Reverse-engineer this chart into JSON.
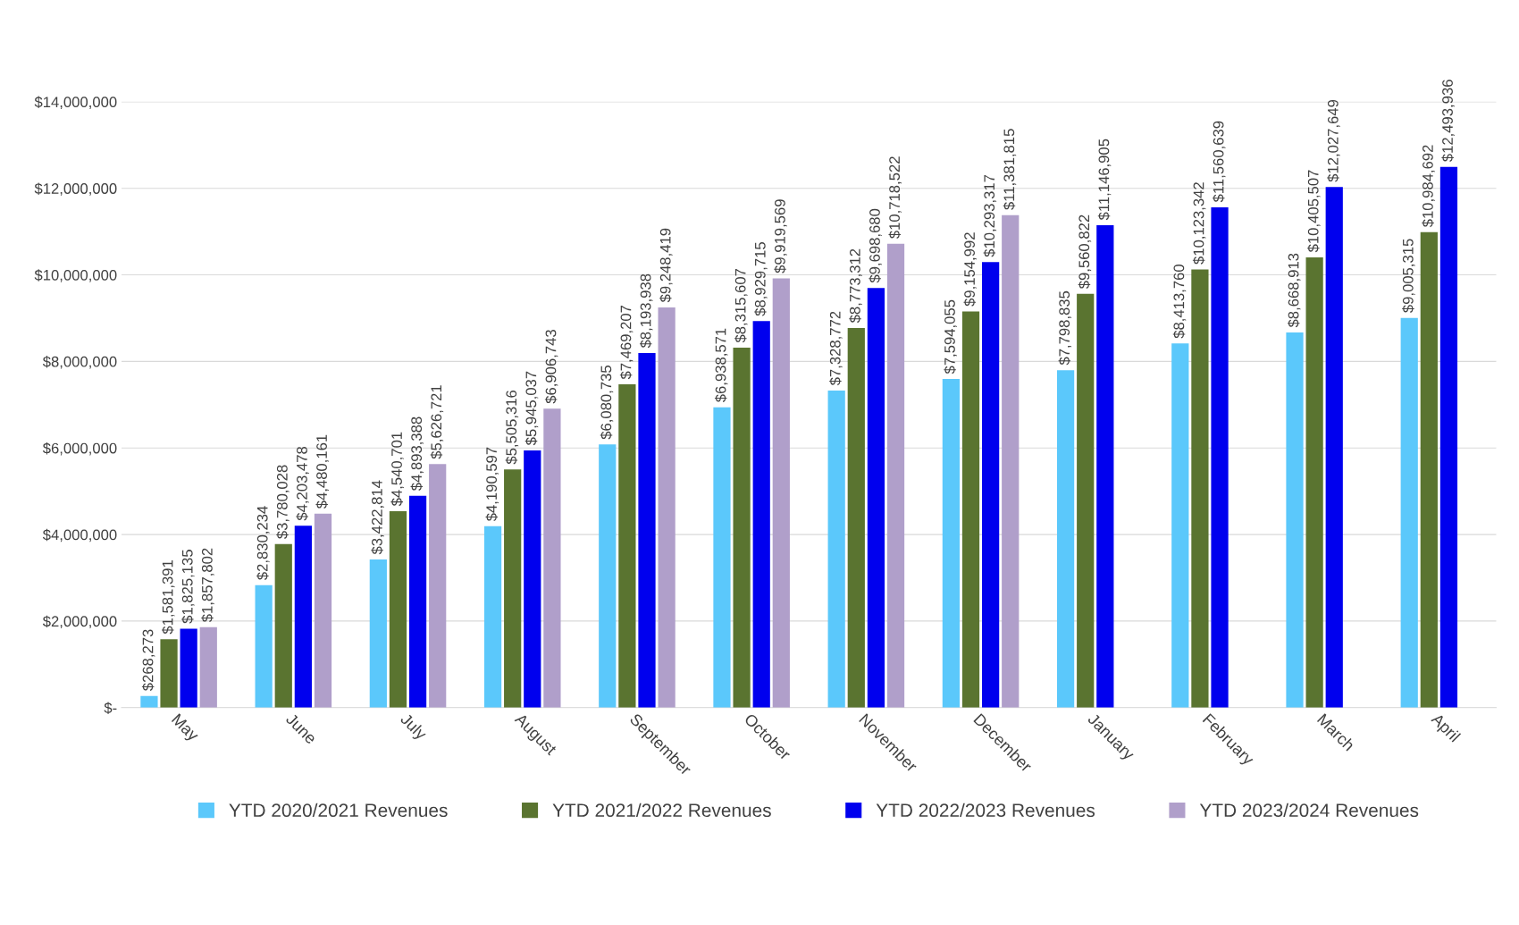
{
  "chart_data": {
    "type": "bar",
    "categories": [
      "May",
      "June",
      "July",
      "August",
      "September",
      "October",
      "November",
      "December",
      "January",
      "February",
      "March",
      "April"
    ],
    "series": [
      {
        "name": "YTD 2020/2021 Revenues",
        "color": "#5bc8fb",
        "values": [
          268273,
          2830234,
          3422814,
          4190597,
          6080735,
          6938571,
          7328772,
          7594055,
          7798835,
          8413760,
          8668913,
          9005315
        ],
        "value_labels": [
          "$268,273",
          "$2,830,234",
          "$3,422,814",
          "$4,190,597",
          "$6,080,735",
          "$6,938,571",
          "$7,328,772",
          "$7,594,055",
          "$7,798,835",
          "$8,413,760",
          "$8,668,913",
          "$9,005,315"
        ]
      },
      {
        "name": "YTD 2021/2022 Revenues",
        "color": "#5a7430",
        "values": [
          1581391,
          3780028,
          4540701,
          5505316,
          7469207,
          8315607,
          8773312,
          9154992,
          9560822,
          10123342,
          10405507,
          10984692
        ],
        "value_labels": [
          "$1,581,391",
          "$3,780,028",
          "$4,540,701",
          "$5,505,316",
          "$7,469,207",
          "$8,315,607",
          "$8,773,312",
          "$9,154,992",
          "$9,560,822",
          "$10,123,342",
          "$10,405,507",
          "$10,984,692"
        ]
      },
      {
        "name": "YTD 2022/2023 Revenues",
        "color": "#0000ee",
        "values": [
          1825135,
          4203478,
          4893388,
          5945037,
          8193938,
          8929715,
          9698680,
          10293317,
          11146905,
          11560639,
          12027649,
          12493936
        ],
        "value_labels": [
          "$1,825,135",
          "$4,203,478",
          "$4,893,388",
          "$5,945,037",
          "$8,193,938",
          "$8,929,715",
          "$9,698,680",
          "$10,293,317",
          "$11,146,905",
          "$11,560,639",
          "$12,027,649",
          "$12,493,936"
        ]
      },
      {
        "name": "YTD 2023/2024 Revenues",
        "color": "#b09fca",
        "values": [
          1857802,
          4480161,
          5626721,
          6906743,
          9248419,
          9919569,
          10718522,
          11381815,
          null,
          null,
          null,
          null
        ],
        "value_labels": [
          "$1,857,802",
          "$4,480,161",
          "$5,626,721",
          "$6,906,743",
          "$9,248,419",
          "$9,919,569",
          "$10,718,522",
          "$11,381,815",
          null,
          null,
          null,
          null
        ]
      }
    ],
    "ylim": [
      0,
      14000000
    ],
    "yticks": [
      {
        "value": 0,
        "label": "$-"
      },
      {
        "value": 2000000,
        "label": "$2,000,000"
      },
      {
        "value": 4000000,
        "label": "$4,000,000"
      },
      {
        "value": 6000000,
        "label": "$6,000,000"
      },
      {
        "value": 8000000,
        "label": "$8,000,000"
      },
      {
        "value": 10000000,
        "label": "$10,000,000"
      },
      {
        "value": 12000000,
        "label": "$12,000,000"
      },
      {
        "value": 14000000,
        "label": "$14,000,000"
      }
    ],
    "grid": "y",
    "legend": "bottom"
  }
}
